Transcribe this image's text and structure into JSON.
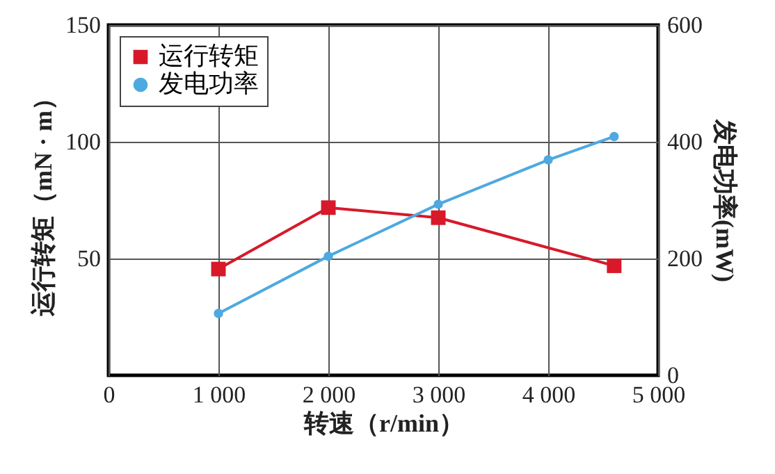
{
  "chart_data": {
    "type": "line",
    "xlabel": "转速（r/min）",
    "ylabel": "运行转矩（mN · m）",
    "y2label": "发电功率(mW)",
    "xlim": [
      0,
      5000
    ],
    "xticks": [
      0,
      {
        "value": 1000,
        "label": "1 000"
      },
      {
        "value": 2000,
        "label": "2 000"
      },
      {
        "value": 3000,
        "label": "3 000"
      },
      {
        "value": 4000,
        "label": "4 000"
      },
      {
        "value": 5000,
        "label": "5 000"
      }
    ],
    "ylim": [
      0,
      150
    ],
    "yticks": [
      50,
      100,
      150
    ],
    "y2lim": [
      0,
      600
    ],
    "y2ticks": [
      0,
      200,
      400,
      600
    ],
    "grid": true,
    "legend": "top left",
    "series": [
      {
        "name": "运行转矩",
        "color": "#d7192a",
        "marker": "square",
        "x": [
          1000,
          2000,
          3000,
          4600
        ],
        "values": [
          45.5,
          71.8,
          67.5,
          46.9
        ]
      },
      {
        "name": "发电功率",
        "color": "#4da9e0",
        "marker": "circle",
        "axis": "y2",
        "x": [
          1000,
          2000,
          3000,
          4000,
          4600
        ],
        "values": [
          106,
          204,
          293,
          369,
          409
        ]
      }
    ]
  }
}
